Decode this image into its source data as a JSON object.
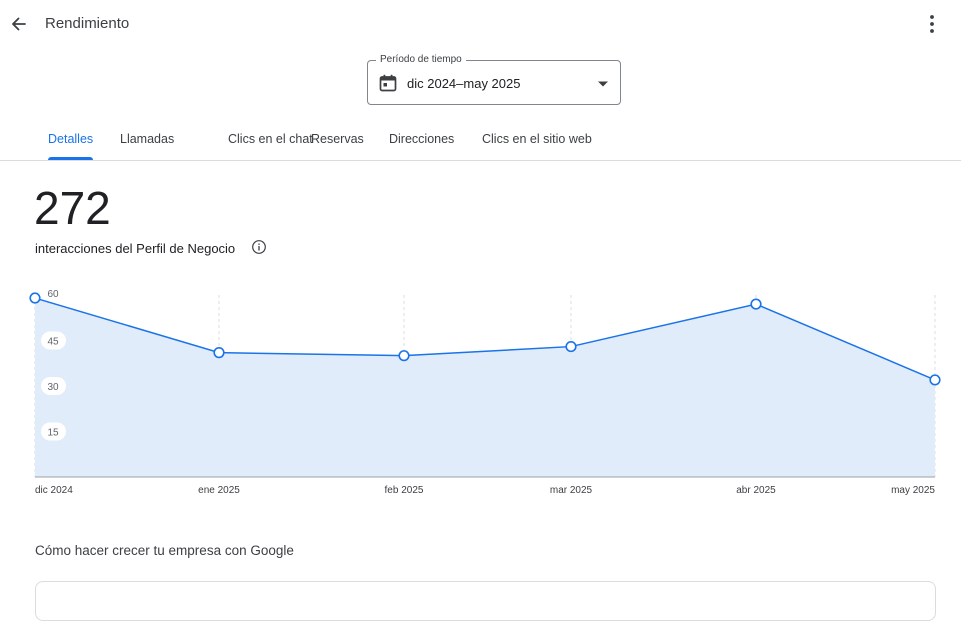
{
  "header": {
    "title": "Rendimiento",
    "back_icon": "arrow-back-icon",
    "more_icon": "more-vert-icon"
  },
  "period": {
    "label": "Período de tiempo",
    "value": "dic 2024–may 2025",
    "icon": "calendar-icon"
  },
  "tabs": [
    {
      "label": "Detalles",
      "active": true
    },
    {
      "label": "Llamadas",
      "active": false
    },
    {
      "label": "Clics en el chat",
      "active": false
    },
    {
      "label": "Reservas",
      "active": false
    },
    {
      "label": "Direcciones",
      "active": false
    },
    {
      "label": "Clics en el sitio web",
      "active": false
    }
  ],
  "summary": {
    "total": "272",
    "label": "interacciones del Perfil de Negocio"
  },
  "chart_data": {
    "type": "area",
    "categories": [
      "dic 2024",
      "ene 2025",
      "feb 2025",
      "mar 2025",
      "abr 2025",
      "may 2025"
    ],
    "values": [
      59,
      41,
      40,
      43,
      57,
      32
    ],
    "yticks": [
      60,
      45,
      30,
      15
    ],
    "ylim": [
      0,
      60
    ],
    "grid": "vertical-dashed",
    "colors": {
      "line": "#1a73e8",
      "fill": "#e1ecfb"
    }
  },
  "section": {
    "title": "Cómo hacer crecer tu empresa con Google"
  },
  "colors": {
    "accent": "#1a73e8",
    "divider": "#dadce0",
    "text": "#202124"
  }
}
